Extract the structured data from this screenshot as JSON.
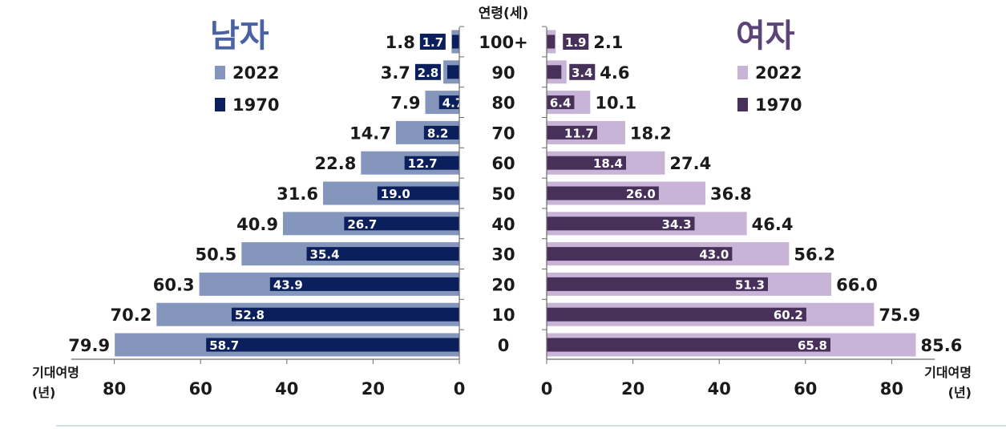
{
  "chart_data": {
    "type": "bar",
    "orientation": "horizontal",
    "layout": "butterfly (population-pyramid style)",
    "age_axis_title": "연령(세)",
    "value_axis_title": "기대여명 (년)",
    "value_axis_title_lines": [
      "기대여명",
      "(년)"
    ],
    "categories": [
      "100+",
      "90",
      "80",
      "70",
      "60",
      "50",
      "40",
      "30",
      "20",
      "10",
      "0"
    ],
    "xlim": [
      0,
      90
    ],
    "ticks": [
      0,
      20,
      40,
      60,
      80
    ],
    "panels": [
      {
        "key": "male",
        "title": "남자",
        "side": "left",
        "series": [
          {
            "name": "2022",
            "values": [
              1.8,
              3.7,
              7.9,
              14.7,
              22.8,
              31.6,
              40.9,
              50.5,
              60.3,
              70.2,
              79.9
            ]
          },
          {
            "name": "1970",
            "values": [
              1.7,
              2.8,
              4.7,
              8.2,
              12.7,
              19.0,
              26.7,
              35.4,
              43.9,
              52.8,
              58.7
            ]
          }
        ]
      },
      {
        "key": "female",
        "title": "여자",
        "side": "right",
        "series": [
          {
            "name": "2022",
            "values": [
              2.1,
              4.6,
              10.1,
              18.2,
              27.4,
              36.8,
              46.4,
              56.2,
              66.0,
              75.9,
              85.6
            ]
          },
          {
            "name": "1970",
            "values": [
              1.9,
              3.4,
              6.4,
              11.7,
              18.4,
              26.0,
              34.3,
              43.0,
              51.3,
              60.2,
              65.8
            ]
          }
        ]
      }
    ],
    "legend_order": [
      "2022",
      "1970"
    ],
    "colors": {
      "male": {
        "2022": "#8596bd",
        "1970": "#0a1f5c",
        "title": "#4a62a3"
      },
      "female": {
        "2022": "#c7b4d6",
        "1970": "#47305a",
        "title": "#5b4577"
      }
    },
    "grid": false
  }
}
